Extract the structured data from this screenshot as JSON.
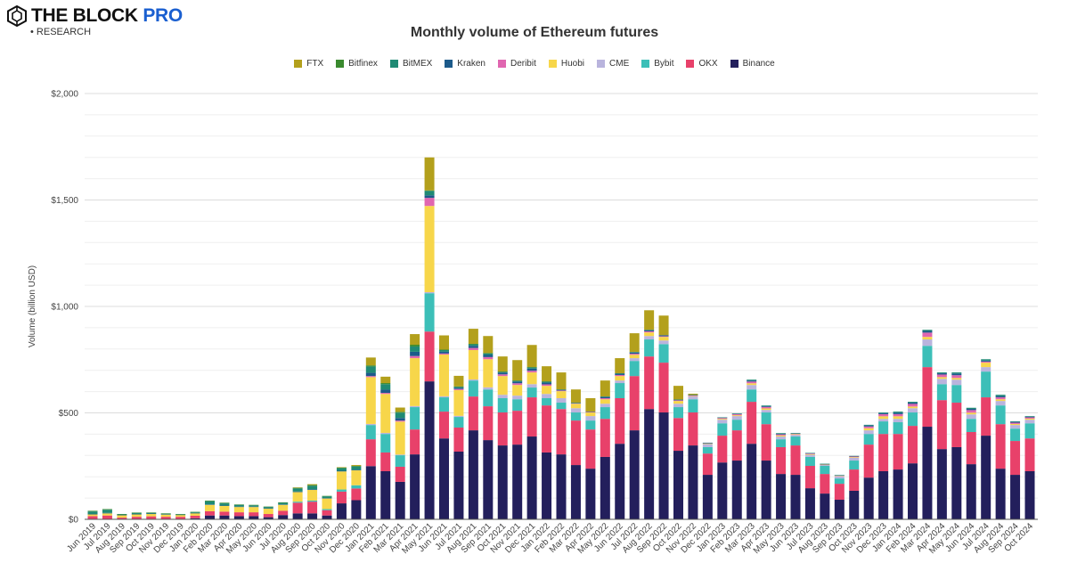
{
  "brand": {
    "name_main": "THE BLOCK",
    "name_accent": "PRO",
    "sub": "• RESEARCH",
    "accent_color": "#1a5fd0"
  },
  "chart_data": {
    "type": "bar",
    "stacked": true,
    "title": "Monthly volume of Ethereum futures",
    "xlabel": "",
    "ylabel": "Volume (billion USD)",
    "ylim": [
      0,
      2000
    ],
    "yticks": [
      0,
      500,
      1000,
      1500,
      2000
    ],
    "ytick_labels": [
      "$0",
      "$500",
      "$1,000",
      "$1,500",
      "$2,000"
    ],
    "grid": true,
    "legend_position": "top",
    "legend_order": [
      "FTX",
      "Bitfinex",
      "BitMEX",
      "Kraken",
      "Deribit",
      "Huobi",
      "CME",
      "Bybit",
      "OKX",
      "Binance"
    ],
    "categories": [
      "Jun 2019",
      "Jul 2019",
      "Aug 2019",
      "Sep 2019",
      "Oct 2019",
      "Nov 2019",
      "Dec 2019",
      "Jan 2020",
      "Feb 2020",
      "Mar 2020",
      "Apr 2020",
      "May 2020",
      "Jun 2020",
      "Jul 2020",
      "Aug 2020",
      "Sep 2020",
      "Oct 2020",
      "Nov 2020",
      "Dec 2020",
      "Jan 2021",
      "Feb 2021",
      "Mar 2021",
      "Apr 2021",
      "May 2021",
      "Jun 2021",
      "Jul 2021",
      "Aug 2021",
      "Sep 2021",
      "Oct 2021",
      "Nov 2021",
      "Dec 2021",
      "Jan 2022",
      "Feb 2022",
      "Mar 2022",
      "Apr 2022",
      "May 2022",
      "Jun 2022",
      "Jul 2022",
      "Aug 2022",
      "Sep 2022",
      "Oct 2022",
      "Nov 2022",
      "Dec 2022",
      "Jan 2023",
      "Feb 2023",
      "Mar 2023",
      "Apr 2023",
      "May 2023",
      "Jun 2023",
      "Jul 2023",
      "Aug 2023",
      "Sep 2023",
      "Oct 2023",
      "Nov 2023",
      "Dec 2023",
      "Jan 2024",
      "Feb 2024",
      "Mar 2024",
      "Apr 2024",
      "May 2024",
      "Jun 2024",
      "Jul 2024",
      "Aug 2024",
      "Sep 2024",
      "Oct 2024"
    ],
    "series": [
      {
        "name": "Binance",
        "color": "#231f5c",
        "values": [
          0,
          0,
          0,
          0,
          2,
          2,
          2,
          5,
          18,
          18,
          15,
          15,
          10,
          20,
          28,
          28,
          18,
          75,
          90,
          250,
          226,
          176,
          305,
          648,
          380,
          318,
          418,
          372,
          347,
          351,
          389,
          314,
          305,
          255,
          238,
          293,
          355,
          418,
          518,
          502,
          322,
          347,
          209,
          267,
          276,
          355,
          276,
          213,
          209,
          146,
          121,
          92,
          134,
          196,
          226,
          234,
          263,
          435,
          330,
          339,
          259,
          393,
          238,
          209,
          226
        ]
      },
      {
        "name": "OKX",
        "color": "#e8416a",
        "values": [
          15,
          18,
          8,
          12,
          12,
          10,
          10,
          12,
          20,
          18,
          18,
          18,
          15,
          20,
          50,
          55,
          25,
          55,
          55,
          126,
          88,
          71,
          117,
          234,
          126,
          113,
          159,
          159,
          155,
          159,
          184,
          221,
          213,
          209,
          184,
          179,
          214,
          255,
          247,
          234,
          154,
          155,
          100,
          126,
          142,
          197,
          171,
          126,
          138,
          105,
          92,
          75,
          100,
          155,
          175,
          167,
          176,
          280,
          230,
          209,
          151,
          180,
          209,
          159,
          154
        ]
      },
      {
        "name": "Bybit",
        "color": "#3cbfb8",
        "values": [
          0,
          0,
          0,
          0,
          0,
          0,
          0,
          0,
          0,
          0,
          0,
          0,
          0,
          0,
          5,
          5,
          5,
          10,
          15,
          67,
          87,
          54,
          105,
          180,
          67,
          50,
          75,
          79,
          67,
          54,
          46,
          34,
          30,
          38,
          42,
          55,
          71,
          71,
          80,
          87,
          51,
          62,
          30,
          58,
          50,
          58,
          55,
          37,
          42,
          42,
          38,
          25,
          42,
          50,
          59,
          55,
          63,
          100,
          75,
          83,
          62,
          121,
          88,
          58,
          71
        ]
      },
      {
        "name": "CME",
        "color": "#b9b4dd",
        "values": [
          0,
          0,
          0,
          0,
          0,
          0,
          0,
          0,
          0,
          0,
          0,
          0,
          0,
          0,
          0,
          0,
          0,
          0,
          0,
          5,
          5,
          3,
          5,
          5,
          5,
          5,
          5,
          10,
          16,
          17,
          16,
          20,
          21,
          20,
          21,
          16,
          12,
          13,
          16,
          17,
          16,
          13,
          16,
          17,
          17,
          21,
          12,
          13,
          8,
          10,
          5,
          10,
          13,
          17,
          12,
          16,
          20,
          30,
          25,
          25,
          21,
          21,
          21,
          17,
          17
        ]
      },
      {
        "name": "Huobi",
        "color": "#f7d64a",
        "values": [
          8,
          10,
          12,
          12,
          12,
          11,
          9,
          12,
          30,
          27,
          25,
          25,
          25,
          28,
          45,
          50,
          50,
          85,
          70,
          220,
          183,
          155,
          225,
          405,
          196,
          121,
          138,
          132,
          88,
          50,
          55,
          38,
          33,
          21,
          17,
          21,
          21,
          16,
          17,
          17,
          13,
          2,
          1,
          4,
          4,
          8,
          7,
          5,
          3,
          3,
          1,
          2,
          3,
          10,
          12,
          12,
          8,
          12,
          8,
          8,
          8,
          21,
          8,
          5,
          5
        ]
      },
      {
        "name": "Deribit",
        "color": "#e066b0",
        "values": [
          0,
          0,
          0,
          0,
          0,
          0,
          0,
          0,
          0,
          0,
          0,
          0,
          0,
          0,
          0,
          0,
          0,
          0,
          0,
          5,
          5,
          5,
          10,
          38,
          5,
          5,
          10,
          10,
          8,
          8,
          8,
          7,
          3,
          2,
          2,
          5,
          5,
          5,
          5,
          3,
          3,
          3,
          2,
          4,
          5,
          8,
          7,
          5,
          2,
          3,
          2,
          2,
          3,
          8,
          10,
          10,
          12,
          20,
          12,
          13,
          12,
          5,
          9,
          6,
          6
        ]
      },
      {
        "name": "Kraken",
        "color": "#1c5a8a",
        "values": [
          2,
          2,
          1,
          1,
          1,
          1,
          1,
          1,
          2,
          2,
          2,
          2,
          2,
          2,
          3,
          3,
          2,
          3,
          3,
          15,
          15,
          12,
          20,
          12,
          8,
          6,
          10,
          10,
          8,
          8,
          10,
          8,
          4,
          2,
          2,
          6,
          6,
          6,
          6,
          5,
          3,
          2,
          1,
          2,
          2,
          5,
          4,
          3,
          2,
          2,
          1,
          1,
          2,
          5,
          5,
          7,
          6,
          8,
          6,
          8,
          6,
          5,
          6,
          4,
          3
        ]
      },
      {
        "name": "BitMEX",
        "color": "#1f8a74",
        "values": [
          12,
          15,
          3,
          5,
          4,
          3,
          2,
          4,
          15,
          10,
          8,
          6,
          6,
          8,
          14,
          17,
          8,
          12,
          15,
          30,
          26,
          25,
          25,
          21,
          8,
          5,
          8,
          8,
          4,
          4,
          6,
          5,
          1,
          1,
          0,
          2,
          2,
          2,
          1,
          0,
          1,
          1,
          1,
          1,
          1,
          4,
          3,
          3,
          1,
          1,
          1,
          1,
          1,
          3,
          3,
          5,
          4,
          5,
          4,
          5,
          5,
          6,
          6,
          2,
          3
        ]
      },
      {
        "name": "Bitfinex",
        "color": "#3a8a2e",
        "values": [
          3,
          3,
          1,
          2,
          1,
          1,
          1,
          1,
          3,
          3,
          2,
          2,
          2,
          2,
          3,
          3,
          2,
          3,
          3,
          5,
          5,
          4,
          8,
          2,
          2,
          1,
          1,
          1,
          1,
          1,
          1,
          1,
          0,
          0,
          0,
          0,
          0,
          0,
          0,
          0,
          0,
          0,
          0,
          0,
          0,
          0,
          0,
          0,
          0,
          0,
          0,
          0,
          0,
          0,
          0,
          0,
          0,
          0,
          0,
          0,
          0,
          0,
          0,
          0,
          0
        ]
      },
      {
        "name": "FTX",
        "color": "#b3a01c",
        "values": [
          0,
          0,
          0,
          0,
          0,
          0,
          0,
          0,
          0,
          0,
          0,
          0,
          0,
          0,
          2,
          4,
          0,
          2,
          4,
          37,
          30,
          20,
          50,
          155,
          67,
          50,
          71,
          80,
          71,
          96,
          104,
          71,
          80,
          62,
          63,
          75,
          71,
          88,
          92,
          92,
          64,
          5,
          0,
          0,
          0,
          0,
          0,
          0,
          0,
          0,
          0,
          0,
          0,
          0,
          0,
          0,
          0,
          0,
          0,
          0,
          0,
          0,
          0,
          0,
          0
        ]
      }
    ]
  }
}
